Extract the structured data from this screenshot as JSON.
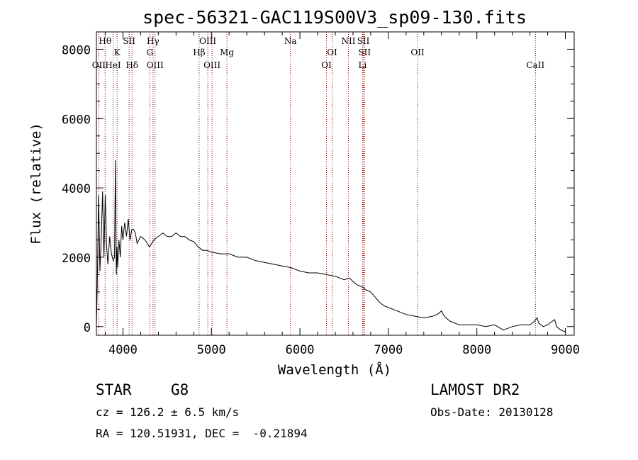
{
  "chart_data": {
    "type": "line",
    "title": "spec-56321-GAC119S00V3_sp09-130.fits",
    "xlabel": "Wavelength (Å)",
    "ylabel": "Flux (relative)",
    "xlim": [
      3700,
      9100
    ],
    "ylim": [
      -250,
      8500
    ],
    "xticks": [
      4000,
      5000,
      6000,
      7000,
      8000,
      9000
    ],
    "xtick_labels": [
      "4000",
      "5000",
      "6000",
      "7000",
      "8000",
      "9000"
    ],
    "yticks": [
      0,
      2000,
      4000,
      6000,
      8000
    ],
    "ytick_labels": [
      "0",
      "2000",
      "4000",
      "6000",
      "8000"
    ],
    "grid": false,
    "series": [
      {
        "x": [
          3700,
          3710,
          3725,
          3740,
          3755,
          3770,
          3785,
          3800,
          3815,
          3830,
          3850,
          3870,
          3890,
          3905,
          3915,
          3925,
          3933,
          3940,
          3955,
          3970,
          3985,
          4000,
          4020,
          4040,
          4060,
          4080,
          4100,
          4120,
          4140,
          4160,
          4180,
          4200,
          4250,
          4300,
          4350,
          4400,
          4450,
          4500,
          4550,
          4600,
          4650,
          4700,
          4750,
          4800,
          4850,
          4900,
          4950,
          5000,
          5100,
          5200,
          5300,
          5400,
          5500,
          5600,
          5700,
          5800,
          5900,
          6000,
          6100,
          6200,
          6300,
          6400,
          6500,
          6563,
          6600,
          6650,
          6700,
          6750,
          6800,
          6850,
          6900,
          6950,
          7000,
          7050,
          7100,
          7150,
          7200,
          7300,
          7400,
          7500,
          7550,
          7600,
          7620,
          7650,
          7700,
          7800,
          7900,
          8000,
          8100,
          8200,
          8300,
          8400,
          8500,
          8600,
          8650,
          8680,
          8700,
          8750,
          8800,
          8850,
          8880,
          8900,
          8950,
          9000
        ],
        "y": [
          0,
          1200,
          3800,
          1600,
          2600,
          3900,
          2000,
          3800,
          2300,
          1800,
          2600,
          2100,
          1900,
          2000,
          4800,
          1500,
          2300,
          1700,
          2500,
          2000,
          2900,
          2500,
          3000,
          2600,
          3100,
          2500,
          2800,
          2800,
          2700,
          2400,
          2500,
          2600,
          2500,
          2300,
          2500,
          2600,
          2700,
          2600,
          2600,
          2700,
          2600,
          2600,
          2500,
          2450,
          2300,
          2200,
          2200,
          2150,
          2100,
          2100,
          2000,
          2000,
          1900,
          1850,
          1800,
          1750,
          1700,
          1600,
          1550,
          1550,
          1500,
          1450,
          1350,
          1400,
          1300,
          1200,
          1150,
          1050,
          1000,
          850,
          700,
          600,
          550,
          500,
          450,
          400,
          350,
          300,
          250,
          300,
          350,
          450,
          350,
          250,
          150,
          50,
          50,
          50,
          0,
          50,
          -100,
          0,
          50,
          50,
          150,
          250,
          100,
          0,
          50,
          150,
          200,
          0,
          -100,
          -150
        ]
      }
    ],
    "lines": [
      {
        "label": "Hθ",
        "x": 3798,
        "row": 1
      },
      {
        "label": "OII",
        "x": 3727,
        "row": 3
      },
      {
        "label": "HeI",
        "x": 3889,
        "row": 3
      },
      {
        "label": "K",
        "x": 3934,
        "row": 2
      },
      {
        "label": "SII",
        "x": 4070,
        "row": 1
      },
      {
        "label": "Hδ",
        "x": 4102,
        "row": 3
      },
      {
        "label": "Hγ",
        "x": 4340,
        "row": 1
      },
      {
        "label": "G",
        "x": 4305,
        "row": 2
      },
      {
        "label": "OIII",
        "x": 4363,
        "row": 3
      },
      {
        "label": "OIII",
        "x": 4959,
        "row": 1
      },
      {
        "label": "Hβ",
        "x": 4861,
        "row": 2
      },
      {
        "label": "OIII",
        "x": 5007,
        "row": 3
      },
      {
        "label": "Mg",
        "x": 5175,
        "row": 2
      },
      {
        "label": "Na",
        "x": 5893,
        "row": 1
      },
      {
        "label": "OI",
        "x": 6364,
        "row": 2
      },
      {
        "label": "OI",
        "x": 6300,
        "row": 3
      },
      {
        "label": "NII",
        "x": 6548,
        "row": 1
      },
      {
        "label": "SII",
        "x": 6717,
        "row": 1
      },
      {
        "label": "SII",
        "x": 6731,
        "row": 2
      },
      {
        "label": "Li",
        "x": 6708,
        "row": 3
      },
      {
        "label": "OII",
        "x": 7330,
        "row": 2
      },
      {
        "label": "CaII",
        "x": 8662,
        "row": 3
      }
    ]
  },
  "info": {
    "object_class": "STAR",
    "subclass": "G8",
    "survey": "LAMOST DR2",
    "velocity": "cz = 126.2 ± 6.5 km/s",
    "obs_date": "Obs-Date: 20130128",
    "coords": "RA = 120.51931, DEC =  -0.21894"
  },
  "colors": {
    "line_marker": "#8b0000",
    "spectrum": "#000000",
    "text": "#000000"
  }
}
